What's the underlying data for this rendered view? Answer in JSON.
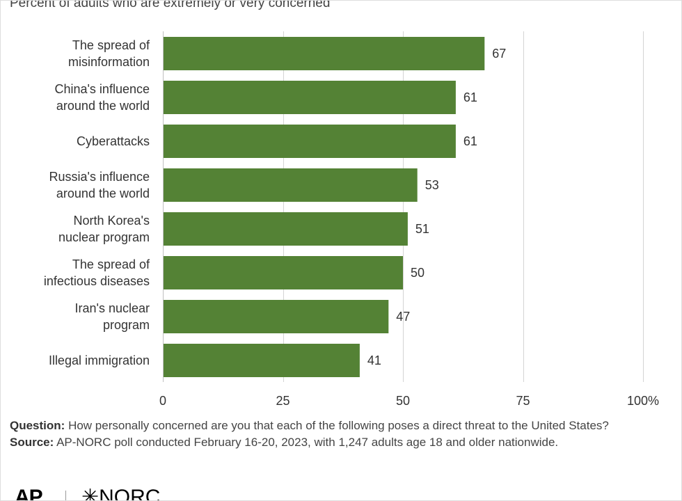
{
  "subtitle": "Percent of adults who are extremely or very concerned",
  "colors": {
    "bar": "#548235",
    "grid": "#d4d4d4",
    "text": "#333333"
  },
  "chart_data": {
    "type": "bar",
    "orientation": "horizontal",
    "title": "",
    "subtitle": "Percent of adults who are extremely or very concerned",
    "categories": [
      [
        "The spread of",
        "misinformation"
      ],
      [
        "China's influence",
        "around the world"
      ],
      [
        "Cyberattacks"
      ],
      [
        "Russia's influence",
        "around the world"
      ],
      [
        "North Korea's",
        "nuclear program"
      ],
      [
        "The spread of",
        "infectious diseases"
      ],
      [
        "Iran's nuclear",
        "program"
      ],
      [
        "Illegal immigration"
      ]
    ],
    "values": [
      67,
      61,
      61,
      53,
      51,
      50,
      47,
      41
    ],
    "xlim": [
      0,
      100
    ],
    "ticks": [
      0,
      25,
      50,
      75,
      100
    ],
    "tick_labels": [
      "0",
      "25",
      "50",
      "75",
      "100%"
    ],
    "grid": true,
    "legend": "none",
    "color": "#548235"
  },
  "notes": {
    "question_label": "Question:",
    "question_text": " How personally concerned are you that each of the following poses a direct threat to the United States?",
    "source_label": "Source:",
    "source_text": " AP-NORC poll conducted February 16-20, 2023, with 1,247 adults age 18 and older nationwide."
  },
  "logos": {
    "ap": "AP",
    "norc_mark": "✳",
    "norc": "NORC"
  }
}
